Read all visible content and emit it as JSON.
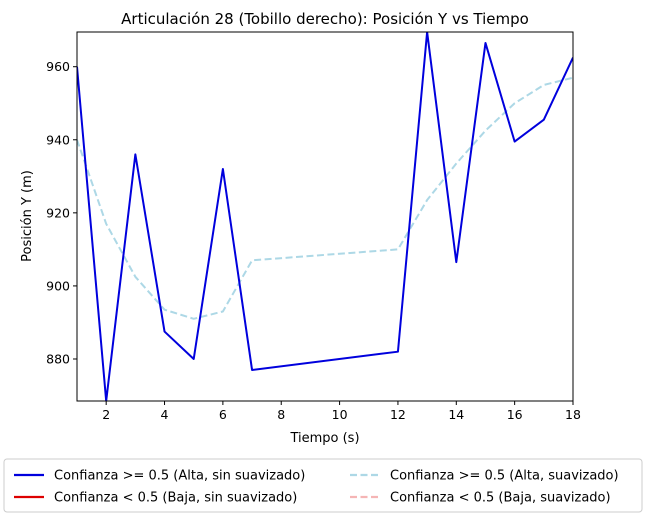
{
  "chart_data": {
    "type": "line",
    "title": "Articulación 28 (Tobillo derecho): Posición Y vs Tiempo",
    "xlabel": "Tiempo (s)",
    "ylabel": "Posición Y (m)",
    "xlim": [
      1,
      18
    ],
    "ylim": [
      868.5,
      969.5
    ],
    "xticks": [
      "2",
      "4",
      "6",
      "8",
      "10",
      "12",
      "14",
      "16",
      "18"
    ],
    "yticks": [
      "880",
      "900",
      "920",
      "940",
      "960"
    ],
    "grid": false,
    "legend_position": "bottom",
    "series": [
      {
        "name": "Confianza >= 0.5 (Alta, sin suavizado)",
        "color": "#0000dd",
        "style": "solid",
        "x": [
          1,
          2,
          3,
          4,
          5,
          6,
          7,
          12,
          13,
          14,
          15,
          16,
          17,
          18
        ],
        "y": [
          960,
          868.5,
          936,
          887.5,
          880,
          932,
          877,
          882,
          969.5,
          906.5,
          966.5,
          939.5,
          945.5,
          962.5
        ]
      },
      {
        "name": "Confianza < 0.5 (Baja, sin suavizado)",
        "color": "#dd0000",
        "style": "solid",
        "x": [],
        "y": []
      },
      {
        "name": "Confianza >= 0.5 (Alta, suavizado)",
        "color": "#add8e6",
        "style": "dashed",
        "x": [
          1,
          2,
          3,
          4,
          5,
          6,
          7,
          12,
          13,
          14,
          15,
          16,
          17,
          18
        ],
        "y": [
          940,
          917,
          902.5,
          893.5,
          891,
          893,
          907,
          910,
          923.5,
          933.5,
          942.5,
          950,
          955,
          957
        ]
      },
      {
        "name": "Confianza < 0.5 (Baja, suavizado)",
        "color": "#f5b5b5",
        "style": "dashed",
        "x": [],
        "y": []
      }
    ]
  }
}
